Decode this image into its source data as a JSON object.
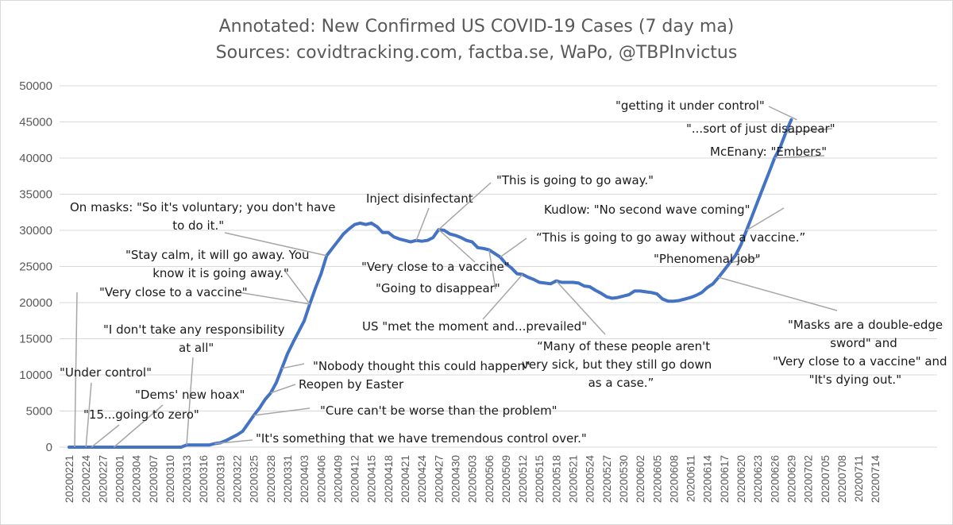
{
  "chart_data": {
    "type": "line",
    "title": "Annotated: New Confirmed US COVID-19 Cases (7 day ma)",
    "subtitle": "Sources: covidtracking.com, factba.se, WaPo, @TBPInvictus",
    "xlabel": "",
    "ylabel": "",
    "ylim": [
      0,
      50000
    ],
    "yticks": [
      0,
      5000,
      10000,
      15000,
      20000,
      25000,
      30000,
      35000,
      40000,
      45000,
      50000
    ],
    "xticks": [
      "20200221",
      "20200224",
      "20200227",
      "20200301",
      "20200304",
      "20200307",
      "20200310",
      "20200313",
      "20200316",
      "20200319",
      "20200322",
      "20200325",
      "20200328",
      "20200331",
      "20200403",
      "20200406",
      "20200409",
      "20200412",
      "20200415",
      "20200418",
      "20200421",
      "20200424",
      "20200427",
      "20200430",
      "20200503",
      "20200506",
      "20200509",
      "20200512",
      "20200515",
      "20200518",
      "20200521",
      "20200524",
      "20200527",
      "20200530",
      "20200602",
      "20200605",
      "20200608",
      "20200611",
      "20200614",
      "20200617",
      "20200620",
      "20200623",
      "20200626",
      "20200629",
      "20200702",
      "20200705",
      "20200708",
      "20200711",
      "20200714"
    ],
    "grid": true,
    "series": [
      {
        "name": "New Confirmed US COVID-19 Cases (7 day ma)",
        "color": "#4472C4",
        "start_date": "20200221",
        "values": [
          0,
          0,
          0,
          0,
          0,
          0,
          0,
          0,
          0,
          0,
          0,
          0,
          0,
          0,
          0,
          0,
          0,
          0,
          0,
          0,
          0,
          300,
          300,
          300,
          300,
          300,
          500,
          600,
          900,
          1300,
          1700,
          2200,
          3300,
          4400,
          5400,
          6600,
          7500,
          8900,
          10900,
          12900,
          14500,
          16000,
          17500,
          19800,
          22000,
          24000,
          26500,
          27500,
          28500,
          29500,
          30200,
          30800,
          31000,
          30800,
          31000,
          30500,
          29700,
          29700,
          29100,
          28800,
          28600,
          28400,
          28600,
          28500,
          28600,
          29000,
          30100,
          30000,
          29500,
          29300,
          29000,
          28600,
          28400,
          27600,
          27500,
          27300,
          26800,
          26300,
          25400,
          24800,
          24000,
          23900,
          23500,
          23200,
          22800,
          22700,
          22600,
          23000,
          22800,
          22800,
          22800,
          22700,
          22300,
          22200,
          21700,
          21300,
          20800,
          20600,
          20700,
          20900,
          21100,
          21600,
          21600,
          21500,
          21400,
          21200,
          20500,
          20200,
          20200,
          20300,
          20500,
          20700,
          21000,
          21400,
          22100,
          22600,
          23500,
          24500,
          25500,
          26500,
          28000,
          30000,
          32000,
          34000,
          36000,
          38000,
          40000,
          41500,
          43500,
          45300
        ]
      }
    ],
    "annotations": [
      {
        "lines": [
          "\"Under control\""
        ],
        "date_index": 3
      },
      {
        "lines": [
          "\"Dems' new hoax\""
        ],
        "date_index": 8
      },
      {
        "lines": [
          "\"15...going to zero\""
        ],
        "date_index": 4
      },
      {
        "lines": [
          "\"Very close to a vaccine\""
        ],
        "date_index": 1
      },
      {
        "lines": [
          "\"I don't take any responsibility",
          "at all\""
        ],
        "date_index": 21
      },
      {
        "lines": [
          "\"It's something that we have tremendous control over.\""
        ],
        "date_index": 26
      },
      {
        "lines": [
          "\"Cure can't be worse than the problem\""
        ],
        "date_index": 33
      },
      {
        "lines": [
          "Reopen by Easter"
        ],
        "date_index": 36
      },
      {
        "lines": [
          "\"Nobody thought this could happen\""
        ],
        "date_index": 38
      },
      {
        "lines": [
          "\"Very close to a vaccine\""
        ],
        "date_index": 43
      },
      {
        "lines": [
          "\"Stay calm, it will go away. You",
          "know it is going away.\""
        ],
        "date_index": 43
      },
      {
        "lines": [
          "On masks: \"So it's voluntary; you don't have",
          "to do it.\""
        ],
        "date_index": 46
      },
      {
        "lines": [
          "Inject disinfectant"
        ],
        "date_index": 62
      },
      {
        "lines": [
          "\"This is going to go away.\""
        ],
        "date_index": 66
      },
      {
        "lines": [
          "\"Very close to a vaccine\""
        ],
        "date_index": 66
      },
      {
        "lines": [
          "\"Going to disappear\""
        ],
        "date_index": 75
      },
      {
        "lines": [
          "“This is going to go away without a vaccine.”"
        ],
        "date_index": 77
      },
      {
        "lines": [
          "US \"met the moment and...prevailed\""
        ],
        "date_index": 81
      },
      {
        "lines": [
          "“Many of these people aren't",
          "very sick, but they still go down",
          "as a case.”"
        ],
        "date_index": 87
      },
      {
        "lines": [
          "\"Masks are a double-edge",
          "sword\" and",
          "\"Very close to a vaccine\" and",
          "\"It's dying out.\""
        ],
        "date_index": 116
      },
      {
        "lines": [
          "\"Phenomenal job\""
        ],
        "date_index": 118
      },
      {
        "lines": [
          "Kudlow: \"No second wave coming\""
        ],
        "date_index": 121
      },
      {
        "lines": [
          "McEnany: \"Embers\""
        ],
        "date_index": 126
      },
      {
        "lines": [
          "\"...sort of just disappear\""
        ],
        "date_index": 128
      },
      {
        "lines": [
          "\"getting it under control\""
        ],
        "date_index": 130
      }
    ]
  }
}
